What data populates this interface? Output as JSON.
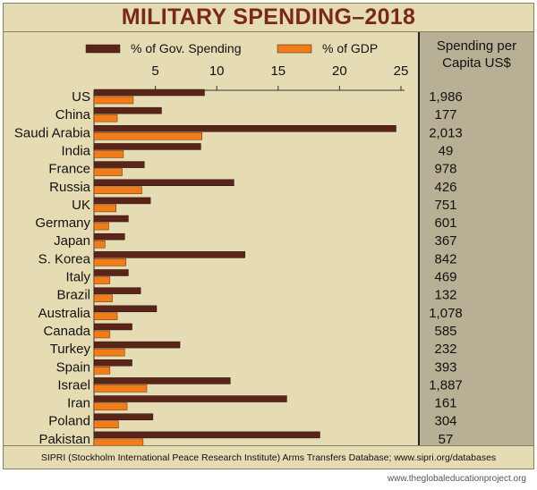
{
  "chart_data": {
    "type": "bar",
    "orientation": "horizontal",
    "title": "MILITARY SPENDING–2018",
    "categories": [
      "US",
      "China",
      "Saudi Arabia",
      "India",
      "France",
      "Russia",
      "UK",
      "Germany",
      "Japan",
      "S. Korea",
      "Italy",
      "Brazil",
      "Australia",
      "Canada",
      "Turkey",
      "Spain",
      "Israel",
      "Iran",
      "Poland",
      "Pakistan"
    ],
    "series": [
      {
        "name": "% of Gov. Spending",
        "color": "#5a2418",
        "values": [
          9.0,
          5.5,
          24.6,
          8.7,
          4.1,
          11.4,
          4.6,
          2.8,
          2.5,
          12.3,
          2.8,
          3.8,
          5.1,
          3.1,
          7.0,
          3.1,
          11.1,
          15.7,
          4.8,
          18.4
        ]
      },
      {
        "name": "% of GDP",
        "color": "#f07d1a",
        "values": [
          3.2,
          1.9,
          8.8,
          2.4,
          2.3,
          3.9,
          1.8,
          1.2,
          0.9,
          2.6,
          1.3,
          1.5,
          1.9,
          1.3,
          2.5,
          1.3,
          4.3,
          2.7,
          2.0,
          4.0
        ]
      }
    ],
    "xticks": [
      5,
      10,
      15,
      20,
      25
    ],
    "xlim": [
      0,
      25
    ],
    "legend_position": "top",
    "grid": false,
    "side_column": {
      "header_line1": "Spending per",
      "header_line2": "Capita US$",
      "values": [
        "1,986",
        "177",
        "2,013",
        "49",
        "978",
        "426",
        "751",
        "601",
        "367",
        "842",
        "469",
        "132",
        "1,078",
        "585",
        "232",
        "393",
        "1,887",
        "161",
        "304",
        "57"
      ]
    }
  },
  "source": "SIPRI (Stockholm International Peace Research Institute) Arms Transfers Database; www.sipri.org/databases",
  "footer_url": "www.theglobaleducationproject.org"
}
